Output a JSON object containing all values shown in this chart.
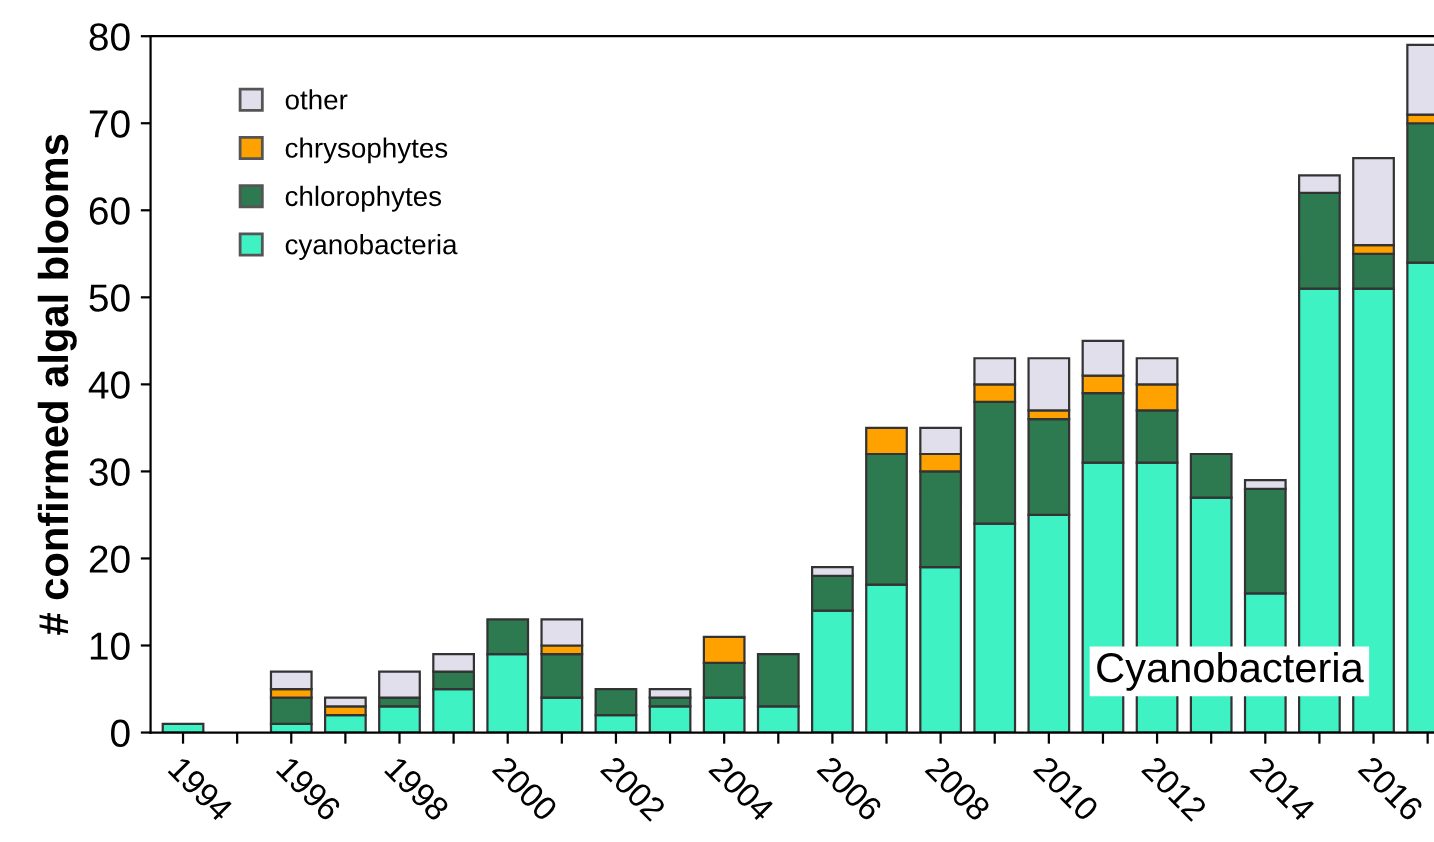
{
  "chart_data": {
    "type": "bar",
    "stacked": true,
    "ylabel": "# confirmed algal blooms",
    "categories": [
      "1994",
      null,
      "1996",
      null,
      "1998",
      null,
      "2000",
      null,
      "2002",
      null,
      "2004",
      null,
      "2006",
      null,
      "2008",
      null,
      "2010",
      null,
      "2012",
      null,
      "2014",
      null,
      "2016",
      null
    ],
    "series": [
      {
        "name": "cyanobacteria",
        "color": "#3ef2c4",
        "values": [
          1,
          0,
          1,
          2,
          3,
          5,
          9,
          4,
          2,
          3,
          4,
          3,
          14,
          17,
          19,
          24,
          25,
          31,
          31,
          27,
          16,
          51,
          51,
          54
        ]
      },
      {
        "name": "chlorophytes",
        "color": "#2e7a50",
        "values": [
          0,
          0,
          3,
          0,
          1,
          2,
          4,
          5,
          3,
          1,
          4,
          6,
          4,
          15,
          11,
          14,
          11,
          8,
          6,
          5,
          12,
          11,
          4,
          16
        ]
      },
      {
        "name": "chrysophytes",
        "color": "#ffa200",
        "values": [
          0,
          0,
          1,
          1,
          0,
          0,
          0,
          1,
          0,
          0,
          3,
          0,
          0,
          3,
          2,
          2,
          1,
          2,
          3,
          0,
          0,
          0,
          1,
          1
        ]
      },
      {
        "name": "other",
        "color": "#e2dfec",
        "values": [
          0,
          0,
          2,
          1,
          3,
          2,
          0,
          3,
          0,
          1,
          0,
          0,
          1,
          0,
          3,
          3,
          6,
          4,
          3,
          0,
          1,
          2,
          10,
          8
        ]
      }
    ],
    "ylim": [
      0,
      80
    ],
    "yticks": [
      0,
      10,
      20,
      30,
      40,
      50,
      60,
      70,
      80
    ],
    "legend": "top left",
    "annotations": [
      "Cyanobacteria"
    ]
  }
}
